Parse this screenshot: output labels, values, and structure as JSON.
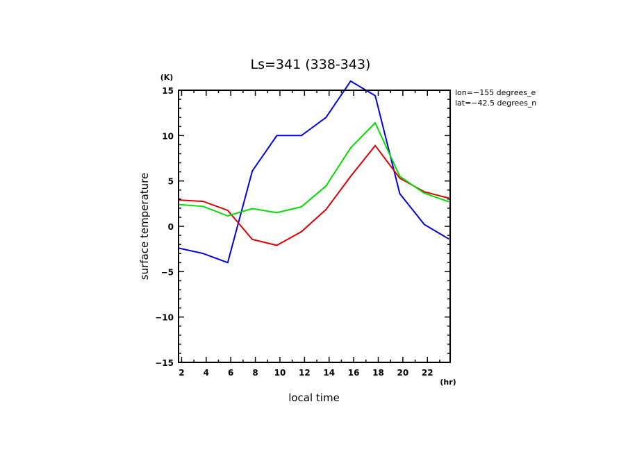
{
  "chart_data": {
    "type": "line",
    "title": "Ls=341 (338-343)",
    "xlabel": "local time",
    "ylabel": "surface temperature",
    "x_unit": "(hr)",
    "y_unit": "(K)",
    "xlim": [
      1.75,
      23.85
    ],
    "ylim": [
      -15,
      15
    ],
    "x_ticks": [
      2,
      4,
      6,
      8,
      10,
      12,
      14,
      16,
      18,
      20,
      22
    ],
    "x_tick_labels": [
      "2",
      "4",
      "6",
      "8",
      "10",
      "12",
      "14",
      "16",
      "18",
      "20",
      "22"
    ],
    "y_ticks": [
      -15,
      -10,
      -5,
      0,
      5,
      10,
      15
    ],
    "y_tick_labels": [
      "−15",
      "−10",
      "−5",
      "0",
      "5",
      "10",
      "15"
    ],
    "grid": false,
    "annotations": [
      "lon=−155 degrees_e",
      "lat=−42.5 degrees_n"
    ],
    "x": [
      1.75,
      3.75,
      5.75,
      7.75,
      9.75,
      11.75,
      13.75,
      15.75,
      17.75,
      19.75,
      21.75,
      23.75
    ],
    "series": [
      {
        "name": "blue",
        "color": "#0000dd",
        "values": [
          -2.4,
          -3.0,
          -4.0,
          6.1,
          10.0,
          10.0,
          12.0,
          16.0,
          14.4,
          3.6,
          0.2,
          -1.4
        ]
      },
      {
        "name": "red",
        "color": "#dd0000",
        "values": [
          2.9,
          2.75,
          1.75,
          -1.45,
          -2.1,
          -0.6,
          1.85,
          5.5,
          8.9,
          5.3,
          3.8,
          3.1
        ]
      },
      {
        "name": "green",
        "color": "#00dd00",
        "values": [
          2.4,
          2.2,
          1.15,
          1.95,
          1.5,
          2.15,
          4.45,
          8.65,
          11.4,
          5.5,
          3.65,
          2.7
        ]
      }
    ]
  }
}
